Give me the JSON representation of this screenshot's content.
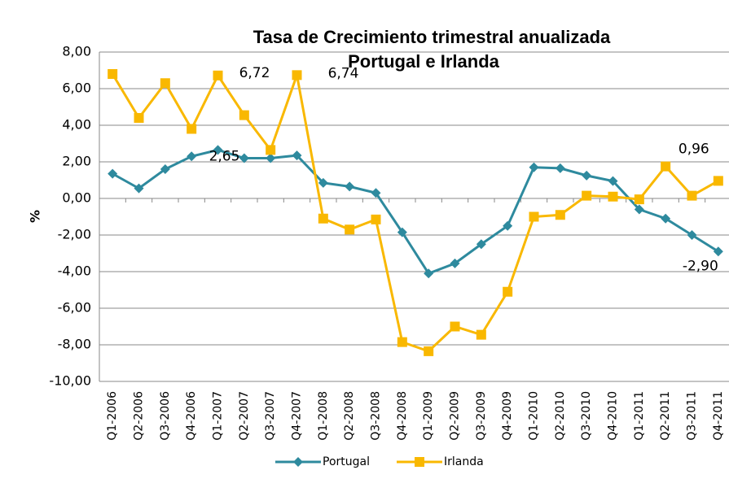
{
  "chart_data": {
    "type": "line",
    "title": [
      "Tasa de Crecimiento trimestral anualizada",
      "Portugal e Irlanda"
    ],
    "y_label": "%",
    "categories": [
      "Q1-2006",
      "Q2-2006",
      "Q3-2006",
      "Q4-2006",
      "Q1-2007",
      "Q2-2007",
      "Q3-2007",
      "Q4-2007",
      "Q1-2008",
      "Q2-2008",
      "Q3-2008",
      "Q4-2008",
      "Q1-2009",
      "Q2-2009",
      "Q3-2009",
      "Q4-2009",
      "Q1-2010",
      "Q2-2010",
      "Q3-2010",
      "Q4-2010",
      "Q1-2011",
      "Q2-2011",
      "Q3-2011",
      "Q4-2011"
    ],
    "series": [
      {
        "name": "Portugal",
        "color": "#2e8a9e",
        "marker": "diamond",
        "values": [
          1.35,
          0.55,
          1.6,
          2.3,
          2.65,
          2.2,
          2.2,
          2.35,
          0.85,
          0.65,
          0.3,
          -1.85,
          -4.1,
          -3.55,
          -2.5,
          -1.5,
          1.7,
          1.65,
          1.25,
          0.95,
          -0.6,
          -1.1,
          -2.0,
          -2.9
        ],
        "value_labels": [
          null,
          null,
          null,
          null,
          "2,65",
          null,
          null,
          null,
          null,
          null,
          null,
          null,
          null,
          null,
          null,
          null,
          null,
          null,
          null,
          null,
          null,
          null,
          null,
          "-2,90"
        ]
      },
      {
        "name": "Irlanda",
        "color": "#f9b800",
        "marker": "square",
        "values": [
          6.8,
          4.4,
          6.3,
          3.8,
          6.72,
          4.55,
          2.65,
          6.74,
          -1.1,
          -1.7,
          -1.15,
          -7.85,
          -8.35,
          -7.0,
          -7.45,
          -5.1,
          -1.0,
          -0.9,
          0.15,
          0.1,
          -0.05,
          1.75,
          0.15,
          0.96
        ],
        "value_labels": [
          null,
          null,
          null,
          null,
          "6,72",
          null,
          null,
          "6,74",
          null,
          null,
          null,
          null,
          null,
          null,
          null,
          null,
          null,
          null,
          null,
          null,
          null,
          null,
          null,
          "0,96"
        ]
      }
    ],
    "ylim": [
      -10,
      8
    ],
    "yticks": [
      {
        "value": -10,
        "label": "-10,00"
      },
      {
        "value": -8,
        "label": "-8,00"
      },
      {
        "value": -6,
        "label": "-6,00"
      },
      {
        "value": -4,
        "label": "-4,00"
      },
      {
        "value": -2,
        "label": "-2,00"
      },
      {
        "value": 0,
        "label": "0,00"
      },
      {
        "value": 2,
        "label": "2,00"
      },
      {
        "value": 4,
        "label": "4,00"
      },
      {
        "value": 6,
        "label": "6,00"
      },
      {
        "value": 8,
        "label": "8,00"
      }
    ],
    "grid": true,
    "legend": "bottom"
  }
}
